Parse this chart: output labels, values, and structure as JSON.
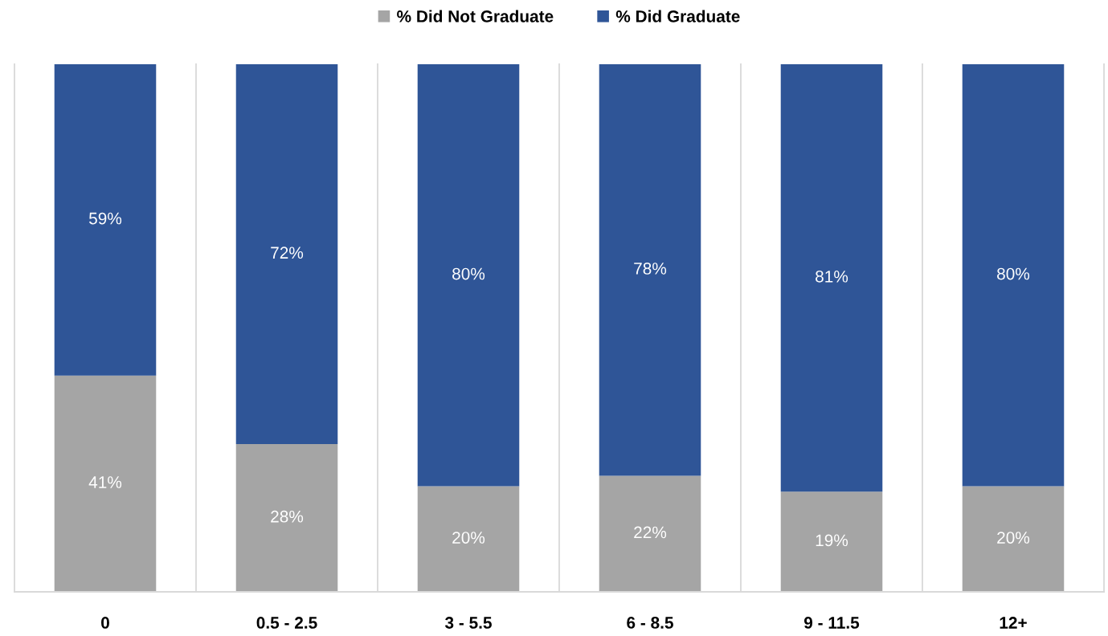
{
  "chart_data": {
    "type": "bar",
    "stacked": true,
    "categories": [
      "0",
      "0.5 - 2.5",
      "3 - 5.5",
      "6 - 8.5",
      "9 - 11.5",
      "12+"
    ],
    "series": [
      {
        "name": "% Did Not Graduate",
        "color": "#a5a5a5",
        "values": [
          41,
          28,
          20,
          22,
          19,
          20
        ],
        "value_labels": [
          "41%",
          "28%",
          "20%",
          "22%",
          "19%",
          "20%"
        ]
      },
      {
        "name": "% Did Graduate",
        "color": "#2f5597",
        "values": [
          59,
          72,
          80,
          78,
          81,
          80
        ],
        "value_labels": [
          "59%",
          "72%",
          "80%",
          "78%",
          "81%",
          "80%"
        ]
      }
    ],
    "ylim": [
      0,
      100
    ],
    "tick_labels": "x",
    "grid": "x",
    "legend": "top"
  }
}
